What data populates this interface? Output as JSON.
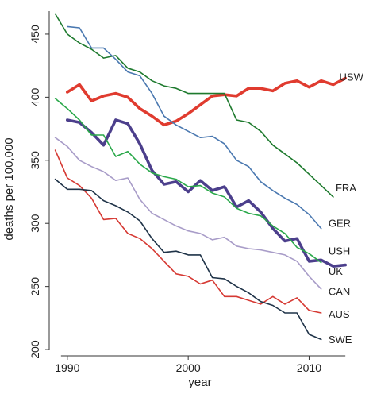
{
  "chart_data": {
    "type": "line",
    "xlabel": "year",
    "ylabel": "deaths per 100,000",
    "xlim": [
      1988.5,
      2014.5
    ],
    "ylim": [
      195,
      472
    ],
    "x_ticks": [
      1990,
      2000,
      2010
    ],
    "y_ticks": [
      200,
      250,
      300,
      350,
      400,
      450
    ],
    "grid": false,
    "series": [
      {
        "name": "USW",
        "color": "#e03b2f",
        "weight": "heavy",
        "x": [
          1990,
          1991,
          1992,
          1993,
          1994,
          1995,
          1996,
          1997,
          1998,
          1999,
          2000,
          2001,
          2002,
          2003,
          2004,
          2005,
          2006,
          2007,
          2008,
          2009,
          2010,
          2011,
          2012,
          2013
        ],
        "y": [
          404,
          410,
          397,
          401,
          403,
          400,
          391,
          385,
          378,
          381,
          387,
          394,
          401,
          402,
          401,
          407,
          407,
          405,
          411,
          413,
          408,
          413,
          410,
          415
        ]
      },
      {
        "name": "FRA",
        "color": "#1e7a2e",
        "weight": "normal",
        "x": [
          1989,
          1990,
          1991,
          1992,
          1993,
          1994,
          1995,
          1996,
          1997,
          1998,
          1999,
          2000,
          2001,
          2002,
          2003,
          2004,
          2005,
          2006,
          2007,
          2008,
          2009,
          2010,
          2011,
          2012
        ],
        "y": [
          466,
          450,
          443,
          438,
          431,
          433,
          423,
          420,
          413,
          409,
          407,
          403,
          403,
          403,
          403,
          382,
          380,
          373,
          362,
          355,
          348,
          339,
          330,
          321
        ]
      },
      {
        "name": "GER",
        "color": "#4a78b0",
        "weight": "normal",
        "x": [
          1990,
          1991,
          1992,
          1993,
          1994,
          1995,
          1996,
          1997,
          1998,
          1999,
          2000,
          2001,
          2002,
          2003,
          2004,
          2005,
          2006,
          2007,
          2008,
          2009,
          2010,
          2011
        ],
        "y": [
          456,
          455,
          439,
          439,
          430,
          420,
          417,
          403,
          385,
          378,
          373,
          368,
          369,
          363,
          350,
          345,
          333,
          326,
          320,
          315,
          307,
          296
        ]
      },
      {
        "name": "USH",
        "color": "#4c3f8c",
        "weight": "heavy",
        "x": [
          1990,
          1991,
          1992,
          1993,
          1994,
          1995,
          1996,
          1997,
          1998,
          1999,
          2000,
          2001,
          2002,
          2003,
          2004,
          2005,
          2006,
          2007,
          2008,
          2009,
          2010,
          2011,
          2012,
          2013
        ],
        "y": [
          382,
          380,
          372,
          362,
          382,
          379,
          363,
          342,
          331,
          333,
          325,
          334,
          326,
          329,
          313,
          318,
          309,
          296,
          286,
          288,
          270,
          271,
          266,
          267
        ]
      },
      {
        "name": "UK",
        "color": "#2aa84a",
        "weight": "normal",
        "x": [
          1989,
          1990,
          1991,
          1992,
          1993,
          1994,
          1995,
          1996,
          1997,
          1998,
          1999,
          2000,
          2001,
          2002,
          2003,
          2004,
          2005,
          2006,
          2007,
          2008,
          2009,
          2010,
          2011
        ],
        "y": [
          399,
          391,
          382,
          370,
          370,
          353,
          357,
          347,
          340,
          337,
          335,
          329,
          330,
          324,
          321,
          312,
          308,
          306,
          298,
          292,
          281,
          276,
          269
        ]
      },
      {
        "name": "CAN",
        "color": "#a89cc8",
        "weight": "normal",
        "x": [
          1989,
          1990,
          1991,
          1992,
          1993,
          1994,
          1995,
          1996,
          1997,
          1998,
          1999,
          2000,
          2001,
          2002,
          2003,
          2004,
          2005,
          2006,
          2007,
          2008,
          2009,
          2010,
          2011
        ],
        "y": [
          368,
          361,
          350,
          345,
          341,
          334,
          336,
          319,
          308,
          303,
          298,
          294,
          292,
          287,
          289,
          282,
          280,
          279,
          277,
          275,
          270,
          258,
          248
        ]
      },
      {
        "name": "AUS",
        "color": "#d63a34",
        "weight": "normal",
        "x": [
          1989,
          1990,
          1991,
          1992,
          1993,
          1994,
          1995,
          1996,
          1997,
          1998,
          1999,
          2000,
          2001,
          2002,
          2003,
          2004,
          2005,
          2006,
          2007,
          2008,
          2009,
          2010,
          2011
        ],
        "y": [
          358,
          336,
          330,
          320,
          303,
          304,
          292,
          288,
          280,
          270,
          260,
          258,
          252,
          255,
          242,
          242,
          239,
          236,
          242,
          236,
          241,
          231,
          229
        ]
      },
      {
        "name": "SWE",
        "color": "#1f3348",
        "weight": "normal",
        "x": [
          1989,
          1990,
          1991,
          1992,
          1993,
          1994,
          1995,
          1996,
          1997,
          1998,
          1999,
          2000,
          2001,
          2002,
          2003,
          2004,
          2005,
          2006,
          2007,
          2008,
          2009,
          2010,
          2011
        ],
        "y": [
          335,
          327,
          327,
          326,
          318,
          314,
          309,
          302,
          288,
          277,
          278,
          275,
          275,
          257,
          256,
          250,
          245,
          238,
          235,
          229,
          229,
          212,
          208
        ]
      }
    ],
    "labels": [
      {
        "text": "USW",
        "x": 2012.5,
        "y": 416
      },
      {
        "text": "FRA",
        "x": 2012.2,
        "y": 328
      },
      {
        "text": "GER",
        "x": 2011.6,
        "y": 300
      },
      {
        "text": "USH",
        "x": 2011.6,
        "y": 278
      },
      {
        "text": "UK",
        "x": 2011.6,
        "y": 262
      },
      {
        "text": "CAN",
        "x": 2011.6,
        "y": 246
      },
      {
        "text": "AUS",
        "x": 2011.6,
        "y": 228
      },
      {
        "text": "SWE",
        "x": 2011.6,
        "y": 208
      }
    ]
  }
}
